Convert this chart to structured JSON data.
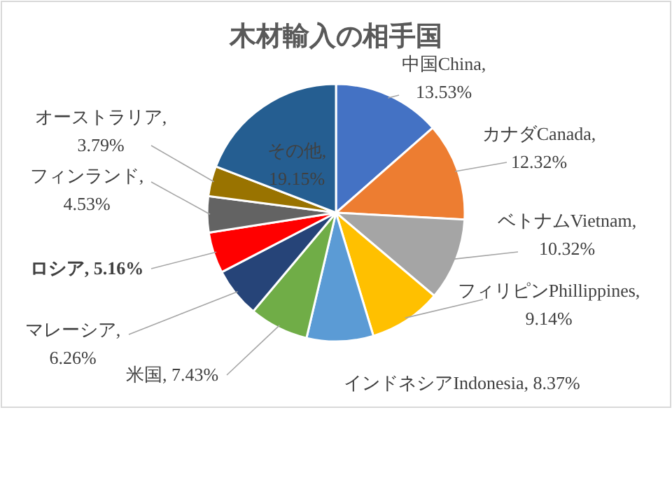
{
  "chart_data": {
    "type": "pie",
    "title": "木材輸入の相手国",
    "categories": [
      "中国China",
      "カナダCanada",
      "ベトナムVietnam",
      "フィリピンPhillippines",
      "インドネシアIndonesia",
      "米国",
      "マレーシア",
      "ロシア",
      "フィンランド",
      "オーストラリア",
      "その他"
    ],
    "values": [
      13.53,
      12.32,
      10.32,
      9.14,
      8.37,
      7.43,
      6.26,
      5.16,
      4.53,
      3.79,
      19.15
    ],
    "colors": [
      "#4472c4",
      "#ed7d31",
      "#a5a5a5",
      "#ffc000",
      "#5b9bd5",
      "#70ad47",
      "#264478",
      "#ff0000",
      "#636363",
      "#997300",
      "#255e91"
    ],
    "value_labels": [
      ", 13.53%",
      ", 12.32%",
      ", 10.32%",
      ", 9.14%",
      ", 8.37%",
      ", 7.43%",
      ", 6.26%",
      ", 5.16%",
      ", 4.53%",
      ", 3.79%",
      ", 19.15%"
    ],
    "legend": false
  }
}
